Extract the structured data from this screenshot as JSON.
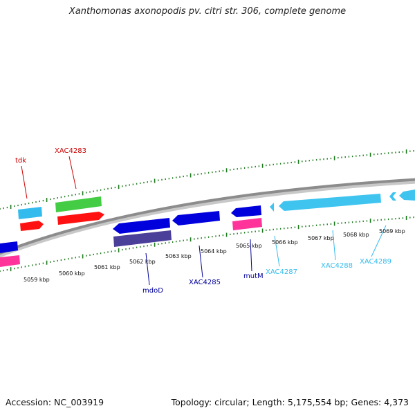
{
  "title": "Xanthomonas axonopodis pv. citri str. 306, complete genome",
  "footer": {
    "accession": "Accession: NC_003919",
    "summary": "Topology: circular; Length: 5,175,554 bp; Genes: 4,373"
  },
  "colors": {
    "backbone": "#8c8c8c",
    "tick": "#1e7a1e",
    "dark_red": "#cc0000",
    "navy": "#000099",
    "light_blue": "#33bbee",
    "green": "#44cc44",
    "red": "#ff1111",
    "blue": "#0000dd",
    "slate": "#4a3f99",
    "pink": "#ff3399",
    "cyan": "#3fc4f0"
  },
  "scale_labels": [
    "5059 kbp",
    "5060 kbp",
    "5061 kbp",
    "5062 kbp",
    "5063 kbp",
    "5064 kbp",
    "5065 kbp",
    "5066 kbp",
    "5067 kbp",
    "5068 kbp",
    "5069 kbp"
  ],
  "gene_labels": [
    {
      "name": "tdk",
      "color_key": "dark_red"
    },
    {
      "name": "XAC4283",
      "color_key": "dark_red"
    },
    {
      "name": "mdoD",
      "color_key": "navy"
    },
    {
      "name": "XAC4285",
      "color_key": "navy"
    },
    {
      "name": "mutM",
      "color_key": "navy"
    },
    {
      "name": "XAC4287",
      "color_key": "light_blue"
    },
    {
      "name": "XAC4288",
      "color_key": "light_blue"
    },
    {
      "name": "XAC4289",
      "color_key": "light_blue"
    }
  ],
  "features": [
    {
      "gene": "feature-edge-blue",
      "color_key": "blue"
    },
    {
      "gene": "feature-edge-pink",
      "color_key": "pink"
    },
    {
      "gene": "tdk-light",
      "color_key": "light_blue"
    },
    {
      "gene": "tdk",
      "color_key": "red"
    },
    {
      "gene": "XAC4283-green",
      "color_key": "green"
    },
    {
      "gene": "XAC4283",
      "color_key": "red"
    },
    {
      "gene": "mdoD",
      "color_key": "blue"
    },
    {
      "gene": "mdoD-slate",
      "color_key": "slate"
    },
    {
      "gene": "XAC4285",
      "color_key": "blue"
    },
    {
      "gene": "mutM",
      "color_key": "blue"
    },
    {
      "gene": "mutM-pink",
      "color_key": "pink"
    },
    {
      "gene": "XAC4287",
      "color_key": "cyan"
    },
    {
      "gene": "XAC4288",
      "color_key": "cyan"
    },
    {
      "gene": "XAC4289",
      "color_key": "cyan"
    },
    {
      "gene": "XAC4289-cont",
      "color_key": "cyan"
    }
  ]
}
